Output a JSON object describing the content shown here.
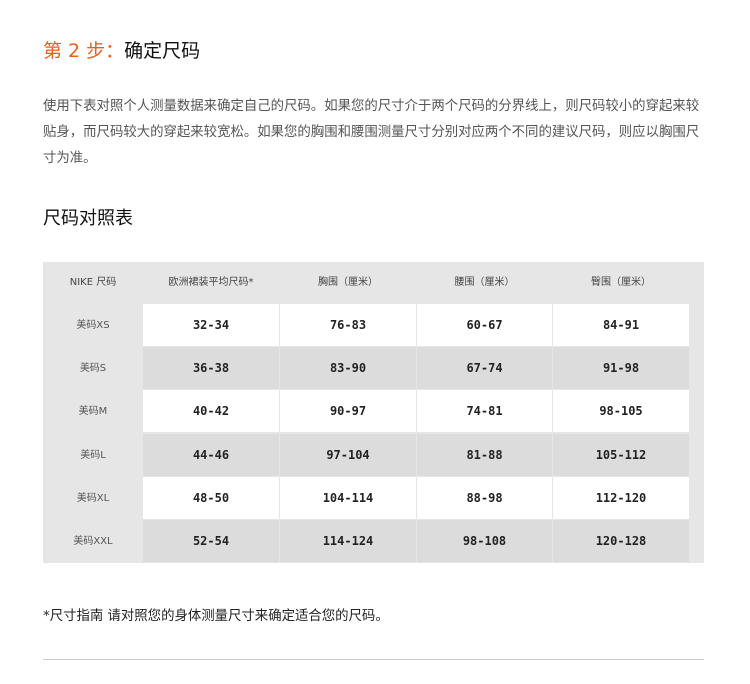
{
  "title": {
    "step": "第 2 步：",
    "text": "确定尺码"
  },
  "intro": "使用下表对照个人测量数据来确定自己的尺码。如果您的尺寸介于两个尺码的分界线上，则尺码较小的穿起来较贴身，而尺码较大的穿起来较宽松。如果您的胸围和腰围测量尺寸分别对应两个不同的建议尺码，则应以胸围尺寸为准。",
  "subtitle": "尺码对照表",
  "table": {
    "headers": [
      "NIKE 尺码",
      "欧洲裙装平均尺码*",
      "胸围（厘米）",
      "腰围（厘米）",
      "臀围（厘米）"
    ],
    "rows": [
      [
        "美码XS",
        "32-34",
        "76-83",
        "60-67",
        "84-91"
      ],
      [
        "美码S",
        "36-38",
        "83-90",
        "67-74",
        "91-98"
      ],
      [
        "美码M",
        "40-42",
        "90-97",
        "74-81",
        "98-105"
      ],
      [
        "美码L",
        "44-46",
        "97-104",
        "81-88",
        "105-112"
      ],
      [
        "美码XL",
        "48-50",
        "104-114",
        "88-98",
        "112-120"
      ],
      [
        "美码XXL",
        "52-54",
        "114-124",
        "98-108",
        "120-128"
      ]
    ]
  },
  "note": "*尺寸指南 请对照您的身体测量尺寸来确定适合您的尺码。",
  "colors": {
    "accent": "#e8601c"
  }
}
